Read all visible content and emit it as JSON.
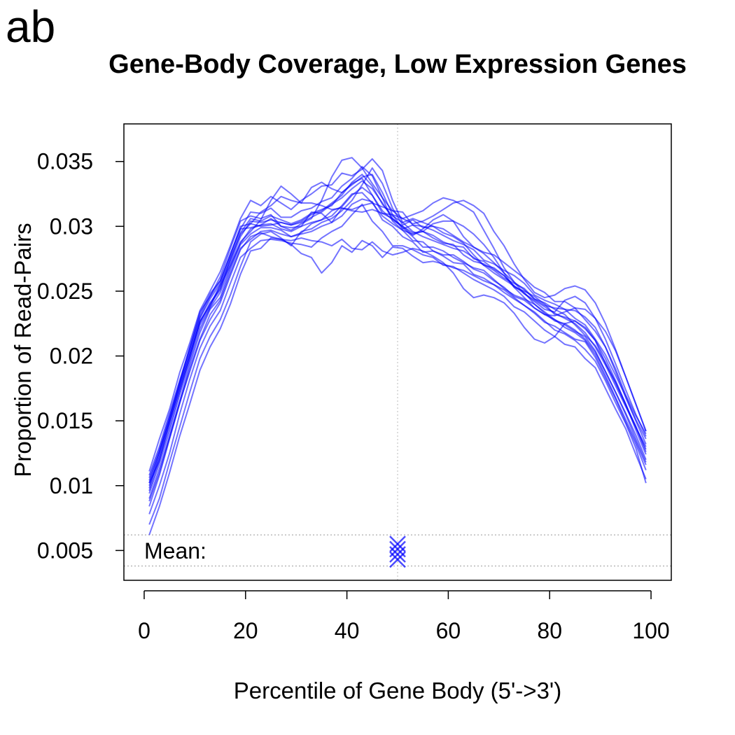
{
  "panel_label": "ab",
  "chart_data": {
    "type": "line",
    "title": "Gene-Body Coverage, Low Expression Genes",
    "xlabel": "Percentile of Gene Body (5'->3')",
    "ylabel": "Proportion of Read-Pairs",
    "xlim": [
      -4,
      104
    ],
    "ylim": [
      0.0027,
      0.0379
    ],
    "x_ticks": [
      0,
      20,
      40,
      60,
      80,
      100
    ],
    "x_tick_labels": [
      "0",
      "20",
      "40",
      "60",
      "80",
      "100"
    ],
    "y_ticks": [
      0.005,
      0.01,
      0.015,
      0.02,
      0.025,
      0.03,
      0.035
    ],
    "y_tick_labels": [
      "0.005",
      "0.01",
      "0.015",
      "0.02",
      "0.025",
      "0.03",
      "0.035"
    ],
    "line_color": "#0000ff",
    "median_line_x": 50,
    "mean_band": [
      0.0038,
      0.0062
    ],
    "mean_label": "Mean:",
    "mean_marker_x": 50,
    "mean_marker_y": [
      0.0043,
      0.0047,
      0.0051,
      0.0055
    ],
    "x": [
      1,
      3,
      5,
      7,
      9,
      11,
      13,
      15,
      17,
      19,
      21,
      23,
      25,
      27,
      29,
      31,
      33,
      35,
      37,
      39,
      41,
      43,
      45,
      47,
      49,
      51,
      53,
      55,
      57,
      59,
      61,
      63,
      65,
      67,
      69,
      71,
      73,
      75,
      77,
      79,
      81,
      83,
      85,
      87,
      89,
      91,
      93,
      95,
      97,
      99
    ],
    "series": [
      {
        "values": [
          0.01,
          0.0122,
          0.0148,
          0.0175,
          0.0201,
          0.0226,
          0.0241,
          0.0252,
          0.0272,
          0.0292,
          0.0304,
          0.0303,
          0.0305,
          0.0303,
          0.0301,
          0.0304,
          0.0309,
          0.0312,
          0.0318,
          0.0324,
          0.0334,
          0.034,
          0.0331,
          0.0317,
          0.0308,
          0.0303,
          0.0296,
          0.0292,
          0.0289,
          0.0286,
          0.0283,
          0.0281,
          0.0276,
          0.027,
          0.0264,
          0.0259,
          0.0254,
          0.0248,
          0.0243,
          0.0238,
          0.0233,
          0.0229,
          0.0225,
          0.0218,
          0.0207,
          0.0193,
          0.0177,
          0.0161,
          0.0145,
          0.0128
        ]
      },
      {
        "values": [
          0.0094,
          0.0117,
          0.0142,
          0.017,
          0.0196,
          0.0221,
          0.0237,
          0.0249,
          0.0269,
          0.0287,
          0.0298,
          0.0301,
          0.0302,
          0.0298,
          0.0296,
          0.03,
          0.0303,
          0.0305,
          0.0312,
          0.0315,
          0.0324,
          0.033,
          0.0324,
          0.031,
          0.0306,
          0.0299,
          0.0292,
          0.0284,
          0.0284,
          0.0281,
          0.0276,
          0.0272,
          0.0268,
          0.0266,
          0.0259,
          0.0252,
          0.0247,
          0.0244,
          0.024,
          0.0233,
          0.0227,
          0.0225,
          0.022,
          0.0213,
          0.0203,
          0.0188,
          0.0172,
          0.0155,
          0.0136,
          0.0118
        ]
      },
      {
        "values": [
          0.0108,
          0.013,
          0.0156,
          0.0181,
          0.0206,
          0.0232,
          0.0248,
          0.0258,
          0.0279,
          0.0298,
          0.0311,
          0.031,
          0.0314,
          0.0307,
          0.0307,
          0.0312,
          0.0314,
          0.0319,
          0.0322,
          0.0331,
          0.0337,
          0.0346,
          0.0339,
          0.0322,
          0.0312,
          0.0311,
          0.0301,
          0.03,
          0.0297,
          0.0293,
          0.0289,
          0.0286,
          0.0282,
          0.0274,
          0.0271,
          0.0266,
          0.0262,
          0.0256,
          0.0247,
          0.0243,
          0.024,
          0.0236,
          0.0229,
          0.0224,
          0.0213,
          0.0201,
          0.0185,
          0.0169,
          0.0151,
          0.0136
        ]
      },
      {
        "values": [
          0.0084,
          0.0108,
          0.0136,
          0.0163,
          0.019,
          0.0213,
          0.0232,
          0.0243,
          0.0264,
          0.0283,
          0.029,
          0.0296,
          0.0297,
          0.0294,
          0.0292,
          0.0294,
          0.0296,
          0.03,
          0.0303,
          0.0308,
          0.0317,
          0.0321,
          0.0319,
          0.0305,
          0.03,
          0.0292,
          0.0288,
          0.028,
          0.0281,
          0.0277,
          0.0272,
          0.0271,
          0.0263,
          0.026,
          0.0255,
          0.0251,
          0.0245,
          0.0239,
          0.0233,
          0.0226,
          0.0223,
          0.0218,
          0.0213,
          0.0211,
          0.0199,
          0.0183,
          0.0167,
          0.0149,
          0.0132,
          0.0112
        ]
      },
      {
        "values": [
          0.0111,
          0.0136,
          0.0159,
          0.0187,
          0.021,
          0.0235,
          0.025,
          0.0265,
          0.0285,
          0.0306,
          0.032,
          0.0316,
          0.0323,
          0.0318,
          0.0313,
          0.032,
          0.0325,
          0.0331,
          0.0332,
          0.0341,
          0.0339,
          0.0344,
          0.0352,
          0.0343,
          0.032,
          0.0303,
          0.0306,
          0.0303,
          0.03,
          0.0298,
          0.0293,
          0.0288,
          0.0284,
          0.028,
          0.0278,
          0.0272,
          0.0266,
          0.026,
          0.0253,
          0.0249,
          0.0242,
          0.0242,
          0.0237,
          0.0228,
          0.0219,
          0.0207,
          0.019,
          0.017,
          0.0154,
          0.014
        ]
      },
      {
        "values": [
          0.0078,
          0.01,
          0.0125,
          0.0155,
          0.0182,
          0.0206,
          0.0223,
          0.0235,
          0.0256,
          0.0276,
          0.0283,
          0.0289,
          0.029,
          0.0289,
          0.0287,
          0.0286,
          0.0284,
          0.0291,
          0.0296,
          0.03,
          0.0309,
          0.0317,
          0.0304,
          0.0296,
          0.0285,
          0.0285,
          0.0282,
          0.0278,
          0.0276,
          0.027,
          0.0269,
          0.0264,
          0.0259,
          0.0255,
          0.0251,
          0.0246,
          0.0238,
          0.0234,
          0.0227,
          0.022,
          0.0215,
          0.0209,
          0.0207,
          0.0198,
          0.0191,
          0.0175,
          0.0159,
          0.0144,
          0.0124,
          0.0105
        ]
      },
      {
        "values": [
          0.0102,
          0.0119,
          0.0149,
          0.0174,
          0.0198,
          0.0227,
          0.0239,
          0.0255,
          0.0274,
          0.0295,
          0.0306,
          0.0304,
          0.0308,
          0.0305,
          0.0302,
          0.0305,
          0.031,
          0.0313,
          0.0316,
          0.0326,
          0.0332,
          0.0338,
          0.034,
          0.0326,
          0.0309,
          0.0298,
          0.0301,
          0.0296,
          0.0293,
          0.0288,
          0.0285,
          0.0284,
          0.0275,
          0.0273,
          0.0267,
          0.0262,
          0.0253,
          0.025,
          0.0246,
          0.024,
          0.0232,
          0.023,
          0.0227,
          0.0221,
          0.0212,
          0.0194,
          0.018,
          0.0163,
          0.0145,
          0.013
        ]
      },
      {
        "values": [
          0.009,
          0.0113,
          0.0138,
          0.0165,
          0.0193,
          0.0218,
          0.0236,
          0.0245,
          0.0267,
          0.0286,
          0.0294,
          0.0299,
          0.0299,
          0.0297,
          0.0292,
          0.0295,
          0.0302,
          0.0305,
          0.0308,
          0.0316,
          0.0325,
          0.0326,
          0.0318,
          0.0308,
          0.0302,
          0.0297,
          0.0289,
          0.0288,
          0.0281,
          0.0278,
          0.0278,
          0.0273,
          0.0267,
          0.0264,
          0.0258,
          0.0253,
          0.0246,
          0.0243,
          0.0237,
          0.0232,
          0.0228,
          0.0224,
          0.0219,
          0.0215,
          0.0204,
          0.0188,
          0.0172,
          0.0156,
          0.0139,
          0.012
        ]
      },
      {
        "values": [
          0.007,
          0.009,
          0.0118,
          0.0145,
          0.0172,
          0.0198,
          0.0215,
          0.0228,
          0.0247,
          0.0269,
          0.0288,
          0.0294,
          0.0296,
          0.0291,
          0.0285,
          0.0296,
          0.0298,
          0.0303,
          0.0306,
          0.0312,
          0.032,
          0.0332,
          0.0345,
          0.0333,
          0.0314,
          0.0301,
          0.0305,
          0.0299,
          0.03,
          0.0295,
          0.0292,
          0.0287,
          0.0278,
          0.027,
          0.0268,
          0.0262,
          0.0254,
          0.0249,
          0.024,
          0.0234,
          0.0228,
          0.0222,
          0.0218,
          0.0212,
          0.0201,
          0.0185,
          0.0168,
          0.0151,
          0.0134,
          0.0116
        ]
      },
      {
        "values": [
          0.0062,
          0.0084,
          0.011,
          0.0138,
          0.0163,
          0.0189,
          0.0207,
          0.0221,
          0.024,
          0.0263,
          0.0281,
          0.0283,
          0.0291,
          0.029,
          0.0286,
          0.0279,
          0.0276,
          0.0264,
          0.0272,
          0.0285,
          0.028,
          0.0289,
          0.0285,
          0.0276,
          0.0284,
          0.0283,
          0.0277,
          0.0272,
          0.0273,
          0.0271,
          0.0268,
          0.0266,
          0.0262,
          0.0258,
          0.0255,
          0.0249,
          0.0244,
          0.0239,
          0.0234,
          0.0227,
          0.022,
          0.0217,
          0.0212,
          0.0205,
          0.0196,
          0.0181,
          0.0164,
          0.0148,
          0.0129,
          0.0102
        ]
      },
      {
        "values": [
          0.0098,
          0.0124,
          0.0151,
          0.0179,
          0.0207,
          0.0234,
          0.0246,
          0.0261,
          0.0283,
          0.0304,
          0.0308,
          0.0306,
          0.0309,
          0.03,
          0.0299,
          0.03,
          0.0311,
          0.031,
          0.0303,
          0.0314,
          0.0313,
          0.0316,
          0.0318,
          0.0315,
          0.0312,
          0.0306,
          0.0309,
          0.0312,
          0.0318,
          0.0322,
          0.032,
          0.0316,
          0.0311,
          0.0297,
          0.0283,
          0.0268,
          0.0257,
          0.0251,
          0.0244,
          0.0239,
          0.0237,
          0.0236,
          0.0235,
          0.023,
          0.0222,
          0.0207,
          0.0188,
          0.0168,
          0.015,
          0.0132
        ]
      },
      {
        "values": [
          0.0096,
          0.012,
          0.0145,
          0.0172,
          0.0199,
          0.0224,
          0.0238,
          0.0254,
          0.027,
          0.0288,
          0.0296,
          0.0305,
          0.032,
          0.0331,
          0.0325,
          0.0318,
          0.033,
          0.0334,
          0.0329,
          0.0326,
          0.0333,
          0.0337,
          0.0324,
          0.0312,
          0.0305,
          0.03,
          0.0293,
          0.0298,
          0.0305,
          0.0309,
          0.0304,
          0.0292,
          0.0284,
          0.0279,
          0.0272,
          0.0264,
          0.0257,
          0.0248,
          0.0242,
          0.0236,
          0.0234,
          0.0243,
          0.0246,
          0.0241,
          0.0229,
          0.0213,
          0.0194,
          0.0174,
          0.0155,
          0.0138
        ]
      },
      {
        "values": [
          0.0104,
          0.0126,
          0.0153,
          0.0178,
          0.0203,
          0.0229,
          0.0244,
          0.0256,
          0.0277,
          0.0298,
          0.0299,
          0.0301,
          0.0306,
          0.03,
          0.0297,
          0.0302,
          0.0306,
          0.032,
          0.0338,
          0.0351,
          0.0353,
          0.0345,
          0.0333,
          0.0322,
          0.0304,
          0.0297,
          0.0294,
          0.0296,
          0.0302,
          0.0304,
          0.0304,
          0.03,
          0.0294,
          0.0286,
          0.0276,
          0.0264,
          0.0253,
          0.0245,
          0.0237,
          0.0232,
          0.0231,
          0.0234,
          0.0237,
          0.0236,
          0.0229,
          0.0219,
          0.0204,
          0.0184,
          0.0163,
          0.0142
        ]
      },
      {
        "values": [
          0.0088,
          0.011,
          0.0137,
          0.0164,
          0.0188,
          0.0212,
          0.0228,
          0.0241,
          0.0262,
          0.0282,
          0.0292,
          0.0295,
          0.0292,
          0.029,
          0.0289,
          0.0291,
          0.0289,
          0.0288,
          0.0285,
          0.029,
          0.0283,
          0.0282,
          0.0288,
          0.0281,
          0.0278,
          0.028,
          0.0283,
          0.0281,
          0.0277,
          0.0272,
          0.0264,
          0.0252,
          0.0245,
          0.0247,
          0.0245,
          0.0241,
          0.0233,
          0.0222,
          0.0213,
          0.021,
          0.0215,
          0.0225,
          0.0227,
          0.0222,
          0.0212,
          0.0198,
          0.0181,
          0.0163,
          0.0143,
          0.0124
        ]
      },
      {
        "values": [
          0.0102,
          0.0126,
          0.015,
          0.0177,
          0.0201,
          0.0226,
          0.024,
          0.0251,
          0.0275,
          0.0294,
          0.0302,
          0.03,
          0.0301,
          0.0303,
          0.0301,
          0.0303,
          0.0307,
          0.0311,
          0.0317,
          0.0322,
          0.0329,
          0.0335,
          0.0329,
          0.0318,
          0.0306,
          0.03,
          0.0295,
          0.0296,
          0.0291,
          0.0287,
          0.0286,
          0.0278,
          0.0273,
          0.0271,
          0.0266,
          0.026,
          0.0256,
          0.0252,
          0.0244,
          0.0241,
          0.0236,
          0.0232,
          0.0224,
          0.0216,
          0.0208,
          0.0195,
          0.0179,
          0.0162,
          0.0146,
          0.0126
        ]
      },
      {
        "values": [
          0.0106,
          0.0128,
          0.0153,
          0.018,
          0.0205,
          0.023,
          0.0246,
          0.0258,
          0.0278,
          0.03,
          0.0302,
          0.0311,
          0.0316,
          0.0323,
          0.032,
          0.0318,
          0.0318,
          0.0316,
          0.0313,
          0.0314,
          0.0312,
          0.0311,
          0.0313,
          0.031,
          0.0309,
          0.0306,
          0.0302,
          0.0304,
          0.0308,
          0.0313,
          0.0318,
          0.032,
          0.0316,
          0.031,
          0.0296,
          0.0285,
          0.0271,
          0.0259,
          0.0249,
          0.0245,
          0.0247,
          0.0252,
          0.0254,
          0.0251,
          0.0241,
          0.0225,
          0.0205,
          0.0184,
          0.0163,
          0.0142
        ]
      }
    ]
  }
}
